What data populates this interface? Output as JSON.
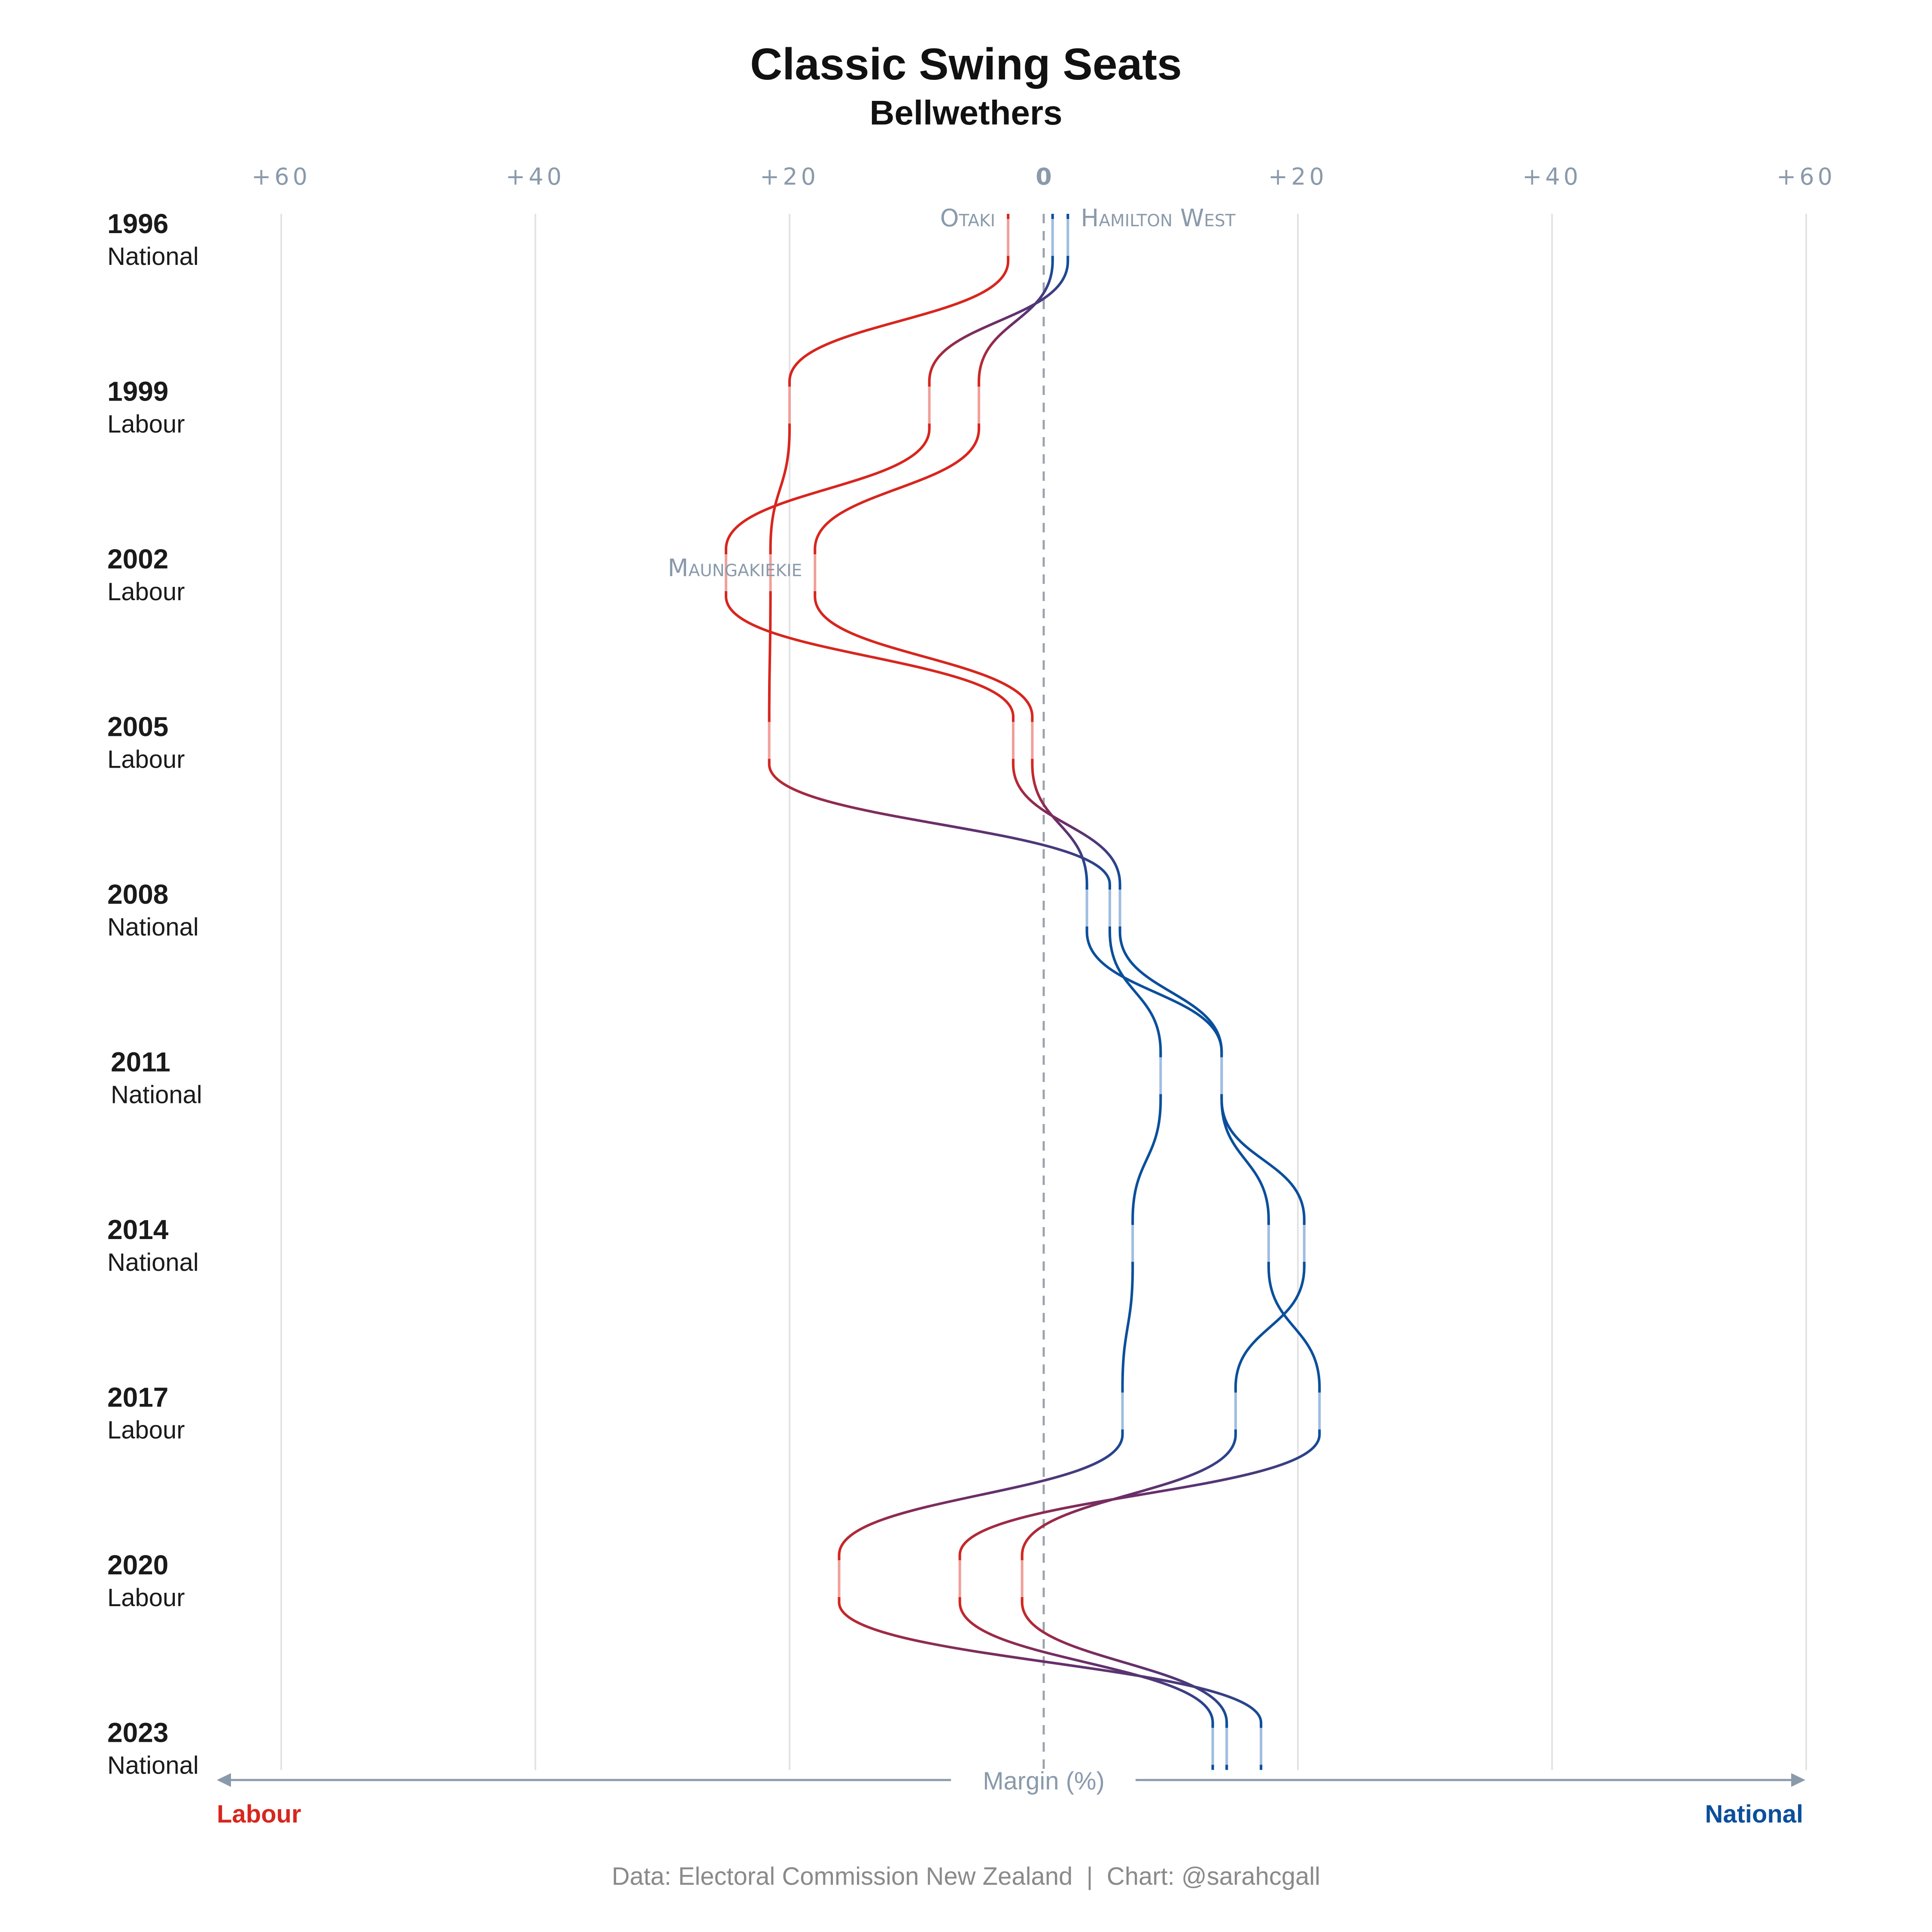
{
  "title": "Classic Swing Seats",
  "subtitle": "Bellwethers",
  "source": "Data: Electoral Commission New Zealand  |  Chart: @sarahcgall",
  "axis": {
    "label": "Margin (%)",
    "left_party": "Labour",
    "right_party": "National",
    "tick_labels": [
      "+60",
      "+40",
      "+20",
      "0",
      "+20",
      "+40",
      "+60"
    ]
  },
  "colors": {
    "labour": "#d7261e",
    "national": "#0b4f9c",
    "grid": "#e3e3e3",
    "muted": "#8a9aab"
  },
  "chart_data": {
    "type": "line",
    "x_axis": "margin (negative = Labour, positive = National)",
    "xlim": [
      -60,
      60
    ],
    "grid": true,
    "elections": [
      {
        "year": "1996",
        "government": "National"
      },
      {
        "year": "1999",
        "government": "Labour"
      },
      {
        "year": "2002",
        "government": "Labour"
      },
      {
        "year": "2005",
        "government": "Labour"
      },
      {
        "year": "2008",
        "government": "National"
      },
      {
        "year": "2011",
        "government": "National"
      },
      {
        "year": "2014",
        "government": "National"
      },
      {
        "year": "2017",
        "government": "Labour"
      },
      {
        "year": "2020",
        "government": "Labour"
      },
      {
        "year": "2023",
        "government": "National"
      }
    ],
    "series": [
      {
        "name": "Otaki",
        "values": [
          -2.8,
          -20.0,
          -21.5,
          -21.6,
          5.2,
          9.2,
          7.0,
          6.2,
          -16.1,
          17.1
        ]
      },
      {
        "name": "Hamilton West",
        "values": [
          1.9,
          -9.0,
          -25.0,
          -2.4,
          6.0,
          14.0,
          17.7,
          21.7,
          -6.6,
          13.3
        ]
      },
      {
        "name": "Maungakiekie",
        "values": [
          0.7,
          -5.1,
          -18.0,
          -0.9,
          3.4,
          14.0,
          20.5,
          15.1,
          -1.7,
          14.4
        ]
      }
    ],
    "labelled_series": [
      {
        "name": "Otaki",
        "at": "1996"
      },
      {
        "name": "Hamilton West",
        "at": "1996"
      },
      {
        "name": "Maungakiekie",
        "at": "2002"
      }
    ]
  }
}
